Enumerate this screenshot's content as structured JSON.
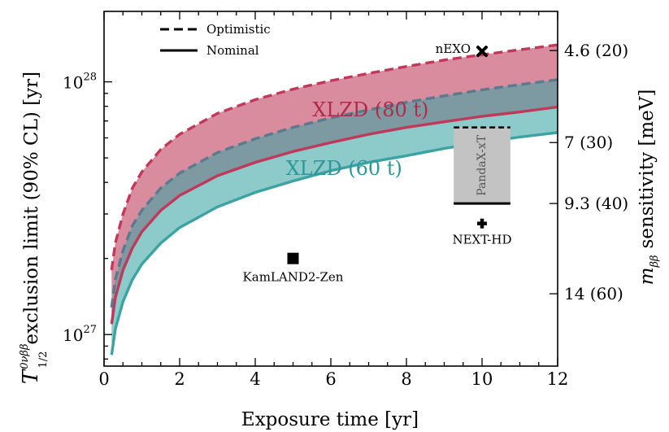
{
  "chart_data": {
    "type": "area",
    "xlabel": "Exposure time [yr]",
    "ylabel_left_math": "T",
    "ylabel_left_sup": "0νββ",
    "ylabel_left_sub": "1/2",
    "ylabel_left": "exclusion limit (90% CL) [yr]",
    "ylabel_right_symbol": "m",
    "ylabel_right_sub": "ββ",
    "ylabel_right": "sensitivity [meV]",
    "xlim": [
      0,
      12
    ],
    "ylim": [
      7.5e+26,
      1.9e+28
    ],
    "yscale": "log",
    "xticks": [
      0,
      2,
      4,
      6,
      8,
      10,
      12
    ],
    "yticks": [
      {
        "value": 1e+27,
        "base": "10",
        "exp": "27"
      },
      {
        "value": 1e+28,
        "base": "10",
        "exp": "28"
      }
    ],
    "right_ticks": [
      {
        "value": 1.33e+28,
        "label": "4.6 (20)"
      },
      {
        "value": 5.75e+27,
        "label": "7 (30)"
      },
      {
        "value": 3.3e+27,
        "label": "9.3 (40)"
      },
      {
        "value": 1.45e+27,
        "label": "14 (60)"
      }
    ],
    "legend": {
      "position": "top-left",
      "entries": [
        {
          "label": "Optimistic",
          "style": "dashed"
        },
        {
          "label": "Nominal",
          "style": "solid"
        }
      ]
    },
    "x": [
      0.2,
      0.3,
      0.5,
      0.75,
      1,
      1.5,
      2,
      3,
      4,
      5,
      6,
      7,
      8,
      9,
      10,
      11,
      12
    ],
    "series": [
      {
        "name": "XLZD (80 t)",
        "color": "#c0395a",
        "fill": "rgba(192,57,90,0.58)",
        "optimistic": [
          1.8e+27,
          2.3e+27,
          3e+27,
          3.8e+27,
          4.4e+27,
          5.4e+27,
          6.2e+27,
          7.5e+27,
          8.5e+27,
          9.35e+27,
          1.01e+28,
          1.08e+28,
          1.15e+28,
          1.22e+28,
          1.28e+28,
          1.34e+28,
          1.4e+28
        ],
        "nominal": [
          1.1e+27,
          1.4e+27,
          1.8e+27,
          2.2e+27,
          2.55e+27,
          3.1e+27,
          3.55e+27,
          4.25e+27,
          4.8e+27,
          5.3e+27,
          5.75e+27,
          6.2e+27,
          6.6e+27,
          6.95e+27,
          7.3e+27,
          7.6e+27,
          7.95e+27
        ]
      },
      {
        "name": "XLZD (60 t)",
        "color": "#3ba3a3",
        "fill": "rgba(59,163,163,0.58)",
        "optimistic": [
          1.28e+27,
          1.65e+27,
          2.15e+27,
          2.7e+27,
          3.1e+27,
          3.8e+27,
          4.35e+27,
          5.25e+27,
          5.95e+27,
          6.6e+27,
          7.2e+27,
          7.75e+27,
          8.3e+27,
          8.8e+27,
          9.3e+27,
          9.75e+27,
          1.02e+28
        ],
        "nominal": [
          8.3e+26,
          1.05e+27,
          1.35e+27,
          1.65e+27,
          1.9e+27,
          2.3e+27,
          2.65e+27,
          3.2e+27,
          3.65e+27,
          4.05e+27,
          4.45e+27,
          4.8e+27,
          5.1e+27,
          5.45e+27,
          5.75e+27,
          6.05e+27,
          6.3e+27
        ]
      }
    ],
    "band_labels": [
      {
        "text": "XLZD (80 t)",
        "x": 7.05,
        "y": 7.75e+27,
        "color": "#b02a4a"
      },
      {
        "text": "XLZD (60 t)",
        "x": 6.35,
        "y": 4.55e+27,
        "color": "#2f9797"
      }
    ],
    "points": [
      {
        "label": "nEXO",
        "x": 10,
        "y": 1.32e+28,
        "marker": "x"
      },
      {
        "label": "NEXT-HD",
        "x": 10,
        "y": 2.75e+27,
        "marker": "plus"
      },
      {
        "label": "KamLAND2-Zen",
        "x": 5,
        "y": 2e+27,
        "marker": "square"
      }
    ],
    "ranges": [
      {
        "label": "PandaX-xT",
        "x": 10,
        "width": 1.5,
        "y_low": 3.3e+27,
        "y_high": 6.6e+27,
        "fill": "#c3c3c3"
      }
    ]
  }
}
